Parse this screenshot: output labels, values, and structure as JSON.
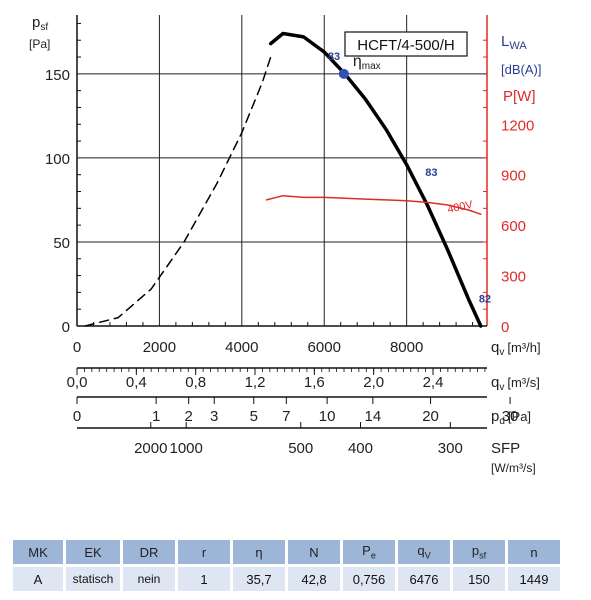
{
  "chart_data": {
    "type": "line",
    "model": "HCFT/4-500/H",
    "left_axis": {
      "label_main": "p",
      "label_sub": "sf",
      "unit": "[Pa]",
      "ticks": [
        0,
        50,
        100,
        150
      ],
      "range": [
        0,
        185
      ]
    },
    "right_axis_lwa": {
      "label_main": "L",
      "label_sub": "WA",
      "unit": "[dB(A)]"
    },
    "right_axis_power": {
      "label": "P[W]",
      "ticks": [
        0,
        300,
        600,
        900,
        1200
      ],
      "range": [
        0,
        1850
      ]
    },
    "x_axes": [
      {
        "label": "q",
        "sub": "v",
        "unit": "[m³/h]",
        "ticks": [
          "0",
          "2000",
          "4000",
          "6000",
          "8000"
        ],
        "values": [
          0,
          2000,
          4000,
          6000,
          8000
        ]
      },
      {
        "label": "q",
        "sub": "v",
        "unit": "[m³/s]",
        "ticks": [
          "0,0",
          "0,4",
          "0,8",
          "1,2",
          "1,6",
          "2,0",
          "2,4"
        ],
        "values": [
          0,
          1440,
          2880,
          4320,
          5760,
          7200,
          8640
        ]
      },
      {
        "label": "p",
        "sub": "d",
        "unit": "[Pa]",
        "ticks": [
          "0",
          "1",
          "2",
          "3",
          "5",
          "7",
          "10",
          "14",
          "20",
          "30"
        ],
        "values": [
          0,
          1920,
          2710,
          3330,
          4290,
          5080,
          6070,
          7180,
          8580,
          10510
        ]
      },
      {
        "label": "SFP",
        "unit": "[W/m³/s]",
        "ticks": [
          "2000",
          "1000",
          "500",
          "400",
          "300"
        ],
        "values": [
          1790,
          2650,
          5430,
          6880,
          9060
        ]
      }
    ],
    "series": [
      {
        "name": "pressure_dashed",
        "style": "dashed",
        "points": [
          [
            200,
            0
          ],
          [
            1000,
            5
          ],
          [
            1800,
            22
          ],
          [
            2600,
            50
          ],
          [
            3400,
            85
          ],
          [
            4000,
            115
          ],
          [
            4500,
            145
          ],
          [
            4700,
            160
          ]
        ]
      },
      {
        "name": "pressure_solid",
        "style": "solid",
        "points": [
          [
            4700,
            168
          ],
          [
            5000,
            174
          ],
          [
            5500,
            172
          ],
          [
            6000,
            163
          ],
          [
            6500,
            150
          ],
          [
            7000,
            135
          ],
          [
            7500,
            117
          ],
          [
            8000,
            96
          ],
          [
            8500,
            72
          ],
          [
            9000,
            45
          ],
          [
            9500,
            16
          ],
          [
            9800,
            0
          ]
        ]
      },
      {
        "name": "400V",
        "style": "solid",
        "axis": "power",
        "points": [
          [
            4600,
            750
          ],
          [
            5000,
            775
          ],
          [
            5500,
            765
          ],
          [
            6000,
            765
          ],
          [
            6500,
            760
          ],
          [
            7000,
            755
          ],
          [
            7500,
            750
          ],
          [
            8000,
            745
          ],
          [
            8500,
            735
          ],
          [
            9000,
            720
          ],
          [
            9500,
            690
          ],
          [
            9800,
            665
          ]
        ]
      }
    ],
    "annotations": [
      {
        "text": "η",
        "sub": "max",
        "x": 6476,
        "y": 150
      },
      {
        "text": "83",
        "x": 6476,
        "y": 150
      },
      {
        "text": "83",
        "x": 8500,
        "y": 88
      },
      {
        "text": "82",
        "x": 9800,
        "y": 14
      },
      {
        "text": "400V",
        "x": 9300,
        "y": 720,
        "axis": "power"
      }
    ],
    "grid": true
  },
  "table": {
    "headers": [
      "MK",
      "EK",
      "DR",
      "r",
      "η",
      "N",
      "P",
      "q",
      "p",
      "n"
    ],
    "header_subs": [
      "",
      "",
      "",
      "",
      "",
      "",
      "e",
      "V",
      "sf",
      ""
    ],
    "row": [
      "A",
      "statisch",
      "nein",
      "1",
      "35,7",
      "42,8",
      "0,756",
      "6476",
      "150",
      "1449"
    ]
  },
  "colors": {
    "pressure": "#000000",
    "power": "#e02a2a",
    "lwa": "#2c3e91",
    "table_header": "#9db6d8",
    "table_cell": "#dde6f2",
    "marker": "#3350b5"
  }
}
